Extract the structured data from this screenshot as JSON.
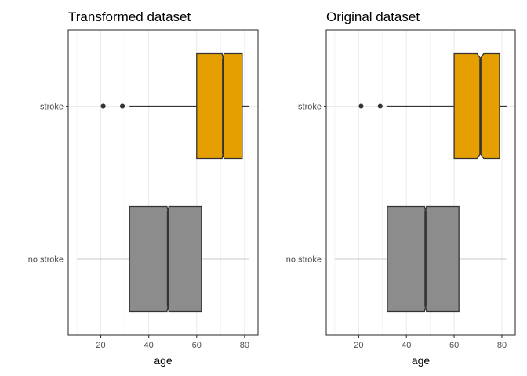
{
  "chart_data": [
    {
      "type": "boxplot",
      "title": "Transformed dataset",
      "xlabel": "age",
      "ylabel": "",
      "xlim": [
        6.4,
        85.6
      ],
      "xticks": [
        20,
        40,
        60,
        80
      ],
      "grid": true,
      "notched": true,
      "categories": [
        "stroke",
        "no stroke"
      ],
      "series": [
        {
          "category": "stroke",
          "min": 32,
          "q1": 60,
          "median": 71,
          "q3": 79,
          "max": 82,
          "notch_low": 70.6,
          "notch_high": 71.4,
          "outliers": [
            21,
            21,
            29,
            29
          ],
          "color": "#E69F00"
        },
        {
          "category": "no stroke",
          "min": 10,
          "q1": 32,
          "median": 48,
          "q3": 62,
          "max": 82,
          "notch_low": 47.6,
          "notch_high": 48.4,
          "outliers": [],
          "color": "#8C8C8C"
        }
      ]
    },
    {
      "type": "boxplot",
      "title": "Original dataset",
      "xlabel": "age",
      "ylabel": "",
      "xlim": [
        6.4,
        85.6
      ],
      "xticks": [
        20,
        40,
        60,
        80
      ],
      "grid": true,
      "notched": true,
      "categories": [
        "stroke",
        "no stroke"
      ],
      "series": [
        {
          "category": "stroke",
          "min": 32,
          "q1": 60,
          "median": 71,
          "q3": 79,
          "max": 82,
          "notch_low": 69.6,
          "notch_high": 72.4,
          "outliers": [
            21,
            29
          ],
          "color": "#E69F00"
        },
        {
          "category": "no stroke",
          "min": 10,
          "q1": 32,
          "median": 48,
          "q3": 62,
          "max": 82,
          "notch_low": 47.6,
          "notch_high": 48.4,
          "outliers": [],
          "color": "#8C8C8C"
        }
      ]
    }
  ]
}
